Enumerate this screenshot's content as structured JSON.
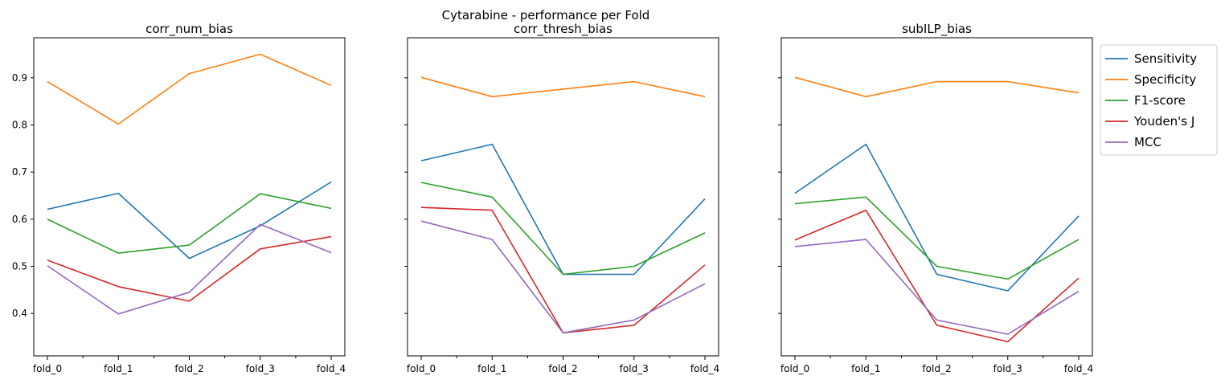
{
  "suptitle": "Cytarabine - performance per Fold",
  "series_colors": {
    "Sensitivity": "#1f77b4",
    "Specificity": "#ff7f0e",
    "F1-score": "#2ca02c",
    "Youden's J": "#d62728",
    "MCC": "#9467bd"
  },
  "legend": {
    "position": "outside-right",
    "entries": [
      "Sensitivity",
      "Specificity",
      "F1-score",
      "Youden's J",
      "MCC"
    ]
  },
  "chart_data": [
    {
      "type": "line",
      "title": "corr_num_bias",
      "categories": [
        "fold_0",
        "fold_1",
        "fold_2",
        "fold_3",
        "fold_4"
      ],
      "ylim": [
        0.31,
        0.985
      ],
      "yticks": [
        "0.4",
        "0.5",
        "0.6",
        "0.7",
        "0.8",
        "0.9"
      ],
      "series": [
        {
          "name": "Sensitivity",
          "values": [
            0.621,
            0.655,
            0.517,
            0.586,
            0.679
          ]
        },
        {
          "name": "Specificity",
          "values": [
            0.892,
            0.802,
            0.909,
            0.95,
            0.884
          ]
        },
        {
          "name": "F1-score",
          "values": [
            0.6,
            0.528,
            0.545,
            0.654,
            0.623
          ]
        },
        {
          "name": "Youden's J",
          "values": [
            0.513,
            0.457,
            0.426,
            0.537,
            0.563
          ]
        },
        {
          "name": "MCC",
          "values": [
            0.501,
            0.399,
            0.445,
            0.589,
            0.529
          ]
        }
      ]
    },
    {
      "type": "line",
      "title": "corr_thresh_bias",
      "categories": [
        "fold_0",
        "fold_1",
        "fold_2",
        "fold_3",
        "fold_4"
      ],
      "ylim": [
        0.31,
        0.985
      ],
      "yticks": [],
      "series": [
        {
          "name": "Sensitivity",
          "values": [
            0.724,
            0.759,
            0.483,
            0.483,
            0.643
          ]
        },
        {
          "name": "Specificity",
          "values": [
            0.901,
            0.86,
            0.876,
            0.892,
            0.86
          ]
        },
        {
          "name": "F1-score",
          "values": [
            0.678,
            0.647,
            0.483,
            0.5,
            0.571
          ]
        },
        {
          "name": "Youden's J",
          "values": [
            0.625,
            0.619,
            0.359,
            0.375,
            0.503
          ]
        },
        {
          "name": "MCC",
          "values": [
            0.596,
            0.557,
            0.359,
            0.386,
            0.463
          ]
        }
      ]
    },
    {
      "type": "line",
      "title": "subILP_bias",
      "categories": [
        "fold_0",
        "fold_1",
        "fold_2",
        "fold_3",
        "fold_4"
      ],
      "ylim": [
        0.31,
        0.985
      ],
      "yticks": [],
      "series": [
        {
          "name": "Sensitivity",
          "values": [
            0.655,
            0.759,
            0.483,
            0.448,
            0.607
          ]
        },
        {
          "name": "Specificity",
          "values": [
            0.901,
            0.86,
            0.892,
            0.892,
            0.868
          ]
        },
        {
          "name": "F1-score",
          "values": [
            0.633,
            0.647,
            0.5,
            0.473,
            0.557
          ]
        },
        {
          "name": "Youden's J",
          "values": [
            0.556,
            0.619,
            0.375,
            0.34,
            0.475
          ]
        },
        {
          "name": "MCC",
          "values": [
            0.542,
            0.557,
            0.386,
            0.356,
            0.447
          ]
        }
      ]
    }
  ]
}
